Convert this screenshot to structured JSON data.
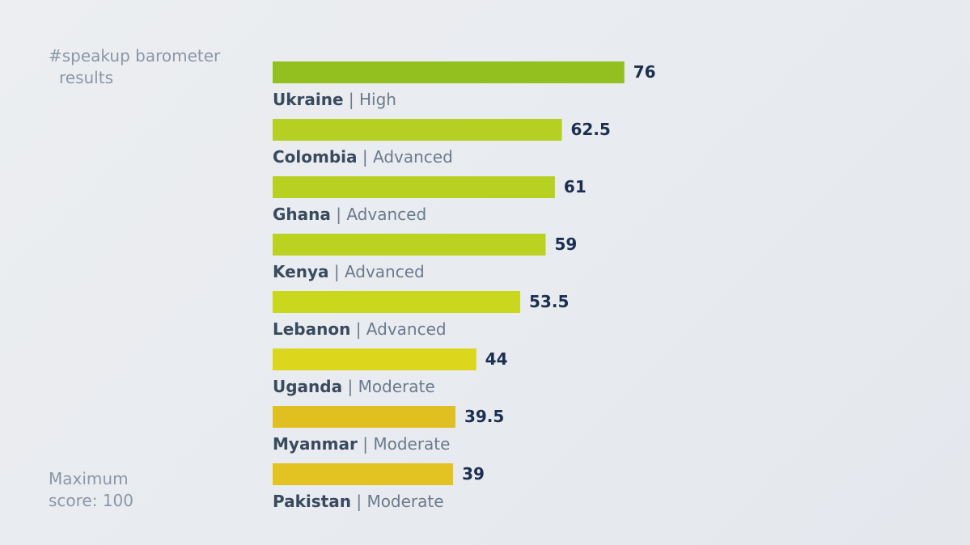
{
  "side": {
    "title_line1": "#speakup barometer",
    "title_line2": "results",
    "note_line1": "Maximum",
    "note_line2": "score: 100"
  },
  "chart_data": {
    "type": "bar",
    "orientation": "horizontal",
    "categories": [
      "Ukraine",
      "Colombia",
      "Ghana",
      "Kenya",
      "Lebanon",
      "Uganda",
      "Myanmar",
      "Pakistan"
    ],
    "levels": [
      "High",
      "Advanced",
      "Advanced",
      "Advanced",
      "Advanced",
      "Moderate",
      "Moderate",
      "Moderate"
    ],
    "values": [
      76,
      62.5,
      61,
      59,
      53.5,
      44,
      39.5,
      39
    ],
    "value_labels": [
      "76",
      "62.5",
      "61",
      "59",
      "53.5",
      "44",
      "39.5",
      "39"
    ],
    "separator": "|",
    "xlim": [
      0,
      100
    ],
    "bar_colors": [
      "#93c01f",
      "#b5cf22",
      "#b7d022",
      "#bcd220",
      "#cad81d",
      "#dcd61c",
      "#e0c021",
      "#e3c321"
    ],
    "value_color": "#1b2f50",
    "grid": false
  }
}
